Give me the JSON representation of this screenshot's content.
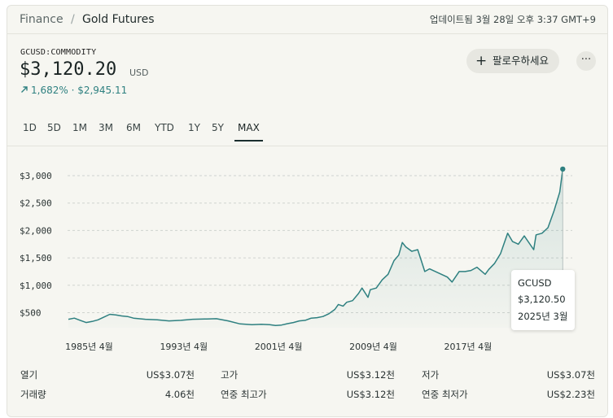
{
  "breadcrumb": {
    "root": "Finance",
    "separator": "/",
    "current": "Gold Futures"
  },
  "updated": "업데이트됨 3월 28일 오후 3:37 GMT+9",
  "quote": {
    "ticker": "GCUSD:COMMODITY",
    "price": "$3,120.20",
    "currency": "USD",
    "change": "1,682% · $2,945.11",
    "change_direction": "up",
    "accent_color": "#2e8080"
  },
  "actions": {
    "follow_label": "팔로우하세요",
    "follow_icon": "plus-icon",
    "more_label": "···",
    "more_icon": "more-icon"
  },
  "tabs": [
    {
      "label": "1D"
    },
    {
      "label": "5D"
    },
    {
      "label": "1M"
    },
    {
      "label": "3M"
    },
    {
      "label": "6M"
    },
    {
      "label": "YTD"
    },
    {
      "label": "1Y"
    },
    {
      "label": "5Y"
    },
    {
      "label": "MAX",
      "active": true
    }
  ],
  "tooltip": {
    "symbol": "GCUSD",
    "value": "$3,120.50",
    "date": "2025년 3월"
  },
  "stats": [
    {
      "label": "열기",
      "value": "US$3.07천"
    },
    {
      "label": "고가",
      "value": "US$3.12천"
    },
    {
      "label": "저가",
      "value": "US$3.07천"
    },
    {
      "label": "거래량",
      "value": "4.06천"
    },
    {
      "label": "연중 최고가",
      "value": "US$3.12천"
    },
    {
      "label": "연중 최저가",
      "value": "US$2.23천"
    }
  ],
  "chart_data": {
    "type": "area",
    "series_color": "#2e8080",
    "grid": "horizontal dashed",
    "y_ticks": [
      {
        "label": "$3,000",
        "value": 3000
      },
      {
        "label": "$2,500",
        "value": 2500
      },
      {
        "label": "$2,000",
        "value": 2000
      },
      {
        "label": "$1,500",
        "value": 1500
      },
      {
        "label": "$1,000",
        "value": 1000
      },
      {
        "label": "$500",
        "value": 500
      }
    ],
    "x_ticks": [
      {
        "label": "1985년 4월",
        "value": 1985.25
      },
      {
        "label": "1993년 4월",
        "value": 1993.25
      },
      {
        "label": "2001년 4월",
        "value": 2001.25
      },
      {
        "label": "2009년 4월",
        "value": 2009.25
      },
      {
        "label": "2017년 4월",
        "value": 2017.25
      }
    ],
    "xlim": [
      1983.5,
      2025.3
    ],
    "ylim": [
      0,
      3250
    ],
    "x": [
      1983.5,
      1984,
      1984.5,
      1985,
      1985.5,
      1986,
      1986.5,
      1987,
      1987.5,
      1988,
      1988.5,
      1989,
      1990,
      1991,
      1992,
      1993,
      1994,
      1995,
      1996,
      1997,
      1998,
      1999,
      1999.8,
      2000.5,
      2001,
      2001.5,
      2002,
      2002.5,
      2003,
      2003.5,
      2004,
      2004.5,
      2005,
      2005.5,
      2006,
      2006.3,
      2006.7,
      2007,
      2007.5,
      2008,
      2008.3,
      2008.8,
      2009,
      2009.5,
      2010,
      2010.5,
      2011,
      2011.4,
      2011.7,
      2012,
      2012.5,
      2013,
      2013.3,
      2013.6,
      2014,
      2014.5,
      2015,
      2015.5,
      2015.9,
      2016.5,
      2017,
      2017.5,
      2018,
      2018.7,
      2019,
      2019.5,
      2020,
      2020.6,
      2021,
      2021.5,
      2022,
      2022.8,
      2023,
      2023.5,
      2024,
      2024.5,
      2025,
      2025.25
    ],
    "y": [
      380,
      400,
      360,
      320,
      340,
      370,
      420,
      470,
      460,
      440,
      430,
      400,
      380,
      370,
      350,
      360,
      380,
      385,
      390,
      350,
      295,
      280,
      290,
      280,
      265,
      275,
      300,
      320,
      350,
      360,
      400,
      410,
      430,
      480,
      560,
      650,
      620,
      690,
      720,
      850,
      950,
      780,
      920,
      950,
      1100,
      1200,
      1450,
      1550,
      1780,
      1700,
      1620,
      1650,
      1450,
      1250,
      1300,
      1250,
      1200,
      1150,
      1060,
      1250,
      1250,
      1270,
      1330,
      1200,
      1290,
      1400,
      1580,
      1950,
      1800,
      1750,
      1900,
      1650,
      1920,
      1950,
      2050,
      2350,
      2700,
      3120
    ]
  }
}
